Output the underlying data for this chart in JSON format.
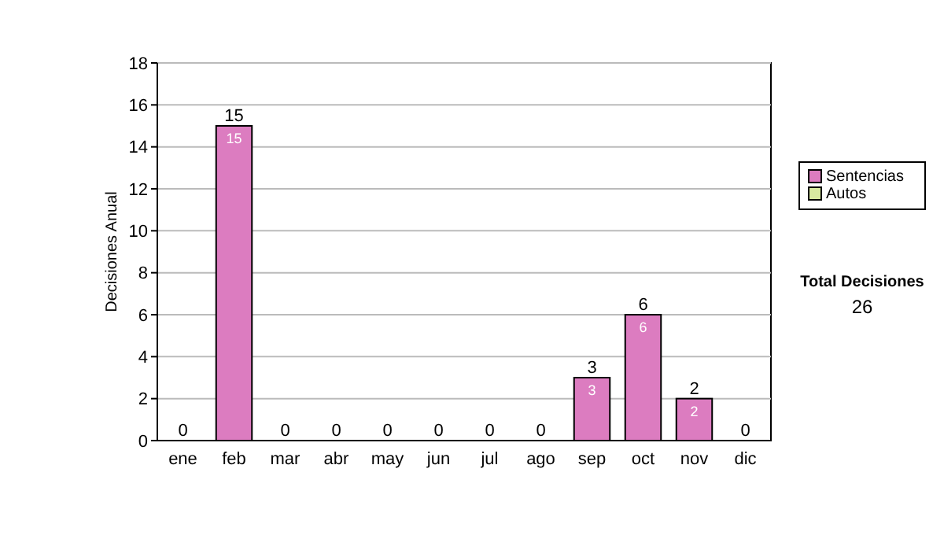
{
  "chart_data": {
    "type": "bar",
    "stacked": true,
    "categories": [
      "ene",
      "feb",
      "mar",
      "abr",
      "may",
      "jun",
      "jul",
      "ago",
      "sep",
      "oct",
      "nov",
      "dic"
    ],
    "series": [
      {
        "name": "Sentencias",
        "color": "#dc7cc0",
        "values": [
          0,
          15,
          0,
          0,
          0,
          0,
          0,
          0,
          3,
          6,
          2,
          0
        ],
        "value_labels": [
          null,
          "15",
          null,
          null,
          null,
          null,
          null,
          null,
          "3",
          "6",
          "2",
          null
        ]
      },
      {
        "name": "Autos",
        "color": "#d8eaa0",
        "values": [
          0,
          0,
          0,
          0,
          0,
          0,
          0,
          0,
          0,
          0,
          0,
          0
        ]
      }
    ],
    "totals": [
      "0",
      "15",
      "0",
      "0",
      "0",
      "0",
      "0",
      "0",
      "3",
      "6",
      "2",
      "0"
    ],
    "ylabel": "Decisiones Anual",
    "ylim": [
      0,
      18
    ],
    "yticks": [
      0,
      2,
      4,
      6,
      8,
      10,
      12,
      14,
      16,
      18
    ],
    "grid": "y",
    "legend": "right",
    "annotations": [
      "Total Decisiones",
      "26"
    ]
  }
}
